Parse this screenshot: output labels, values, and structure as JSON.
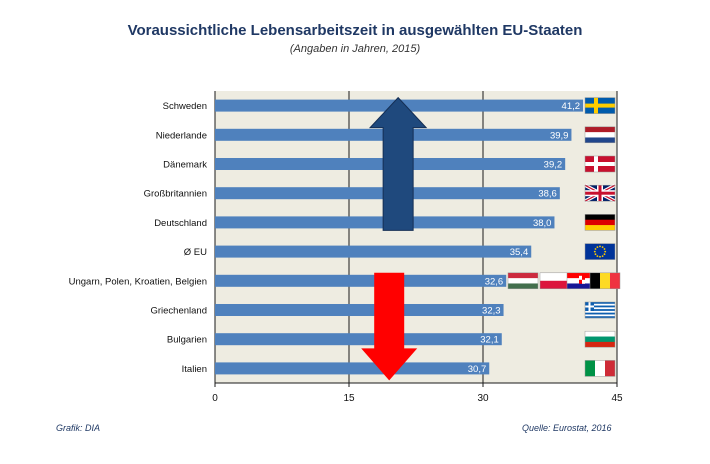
{
  "title": "Voraussichtliche Lebensarbeitszeit in ausgewählten EU-Staaten",
  "subtitle": "(Angaben in Jahren, 2015)",
  "footer": {
    "source_left": "Grafik: DIA",
    "source_right": "Quelle: Eurostat, 2016"
  },
  "colors": {
    "bar": "#4f81bd",
    "plot_bg": "#eeece1",
    "arrow_up": "#1f497d",
    "arrow_down": "#ff0000",
    "grid": "#1a1a1a"
  },
  "chart_data": {
    "type": "bar",
    "orientation": "horizontal",
    "categories": [
      "Schweden",
      "Niederlande",
      "Dänemark",
      "Großbritannien",
      "Deutschland",
      "Ø EU",
      "Ungarn, Polen, Kroatien, Belgien",
      "Griechenland",
      "Bulgarien",
      "Italien"
    ],
    "values": [
      41.2,
      39.9,
      39.2,
      38.6,
      38.0,
      35.4,
      32.6,
      32.3,
      32.1,
      30.7
    ],
    "value_labels": [
      "41,2",
      "39,9",
      "39,2",
      "38,6",
      "38,0",
      "35,4",
      "32,6",
      "32,3",
      "32,1",
      "30,7"
    ],
    "flags": [
      [
        "sweden"
      ],
      [
        "netherlands"
      ],
      [
        "denmark"
      ],
      [
        "united-kingdom"
      ],
      [
        "germany"
      ],
      [
        "european-union"
      ],
      [
        "hungary",
        "poland",
        "croatia",
        "belgium"
      ],
      [
        "greece"
      ],
      [
        "bulgaria"
      ],
      [
        "italy"
      ]
    ],
    "xlim": [
      0,
      45
    ],
    "xticks": [
      0,
      15,
      30,
      45
    ],
    "grid": true,
    "annotations": [
      {
        "type": "arrow-up",
        "color": "#1f497d"
      },
      {
        "type": "arrow-down",
        "color": "#ff0000"
      }
    ]
  }
}
